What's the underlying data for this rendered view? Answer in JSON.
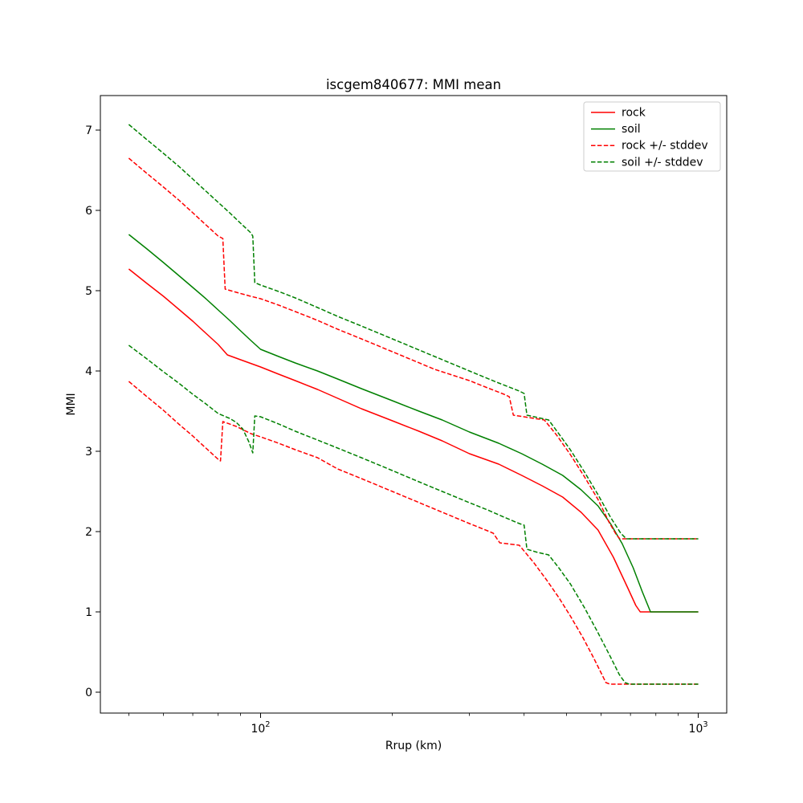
{
  "figure": {
    "background": "#ffffff"
  },
  "chart_data": {
    "type": "line",
    "title": "iscgem840677: MMI mean",
    "xlabel": "Rrup (km)",
    "ylabel": "MMI",
    "x_scale": "log",
    "x_range_log10": [
      1.634,
      3.065
    ],
    "y_range": [
      -0.26,
      7.43
    ],
    "x_major_ticks": [
      {
        "value": 100,
        "base": "10",
        "exponent": "2"
      },
      {
        "value": 1000,
        "base": "10",
        "exponent": "3"
      }
    ],
    "x_minor_ticks": [
      50,
      60,
      70,
      80,
      90,
      200,
      300,
      400,
      500,
      600,
      700,
      800,
      900
    ],
    "y_ticks": [
      0,
      1,
      2,
      3,
      4,
      5,
      6,
      7
    ],
    "grid": false,
    "colors": {
      "rock": "#ff0000",
      "soil": "#008000"
    },
    "legend": {
      "position": "upper right",
      "entries": [
        {
          "label": "rock",
          "color": "#ff0000",
          "dashed": false
        },
        {
          "label": "soil",
          "color": "#008000",
          "dashed": false
        },
        {
          "label": "rock +/- stddev",
          "color": "#ff0000",
          "dashed": true
        },
        {
          "label": "soil +/- stddev",
          "color": "#008000",
          "dashed": true
        }
      ]
    },
    "series": [
      {
        "id": "rock-mean",
        "legend": "rock",
        "color": "#ff0000",
        "dashed": false,
        "points": [
          [
            50,
            5.27
          ],
          [
            55,
            5.09
          ],
          [
            60,
            4.93
          ],
          [
            65,
            4.77
          ],
          [
            70,
            4.62
          ],
          [
            75,
            4.47
          ],
          [
            80,
            4.33
          ],
          [
            84,
            4.2
          ],
          [
            90,
            4.14
          ],
          [
            100,
            4.05
          ],
          [
            110,
            3.96
          ],
          [
            120,
            3.88
          ],
          [
            135,
            3.77
          ],
          [
            150,
            3.66
          ],
          [
            170,
            3.53
          ],
          [
            200,
            3.38
          ],
          [
            230,
            3.25
          ],
          [
            260,
            3.13
          ],
          [
            300,
            2.97
          ],
          [
            350,
            2.84
          ],
          [
            395,
            2.7
          ],
          [
            440,
            2.57
          ],
          [
            490,
            2.43
          ],
          [
            540,
            2.24
          ],
          [
            590,
            2.02
          ],
          [
            640,
            1.68
          ],
          [
            690,
            1.3
          ],
          [
            720,
            1.08
          ],
          [
            737,
            1.0
          ],
          [
            1000,
            1.0
          ]
        ]
      },
      {
        "id": "soil-mean",
        "legend": "soil",
        "color": "#008000",
        "dashed": false,
        "points": [
          [
            50,
            5.7
          ],
          [
            55,
            5.52
          ],
          [
            60,
            5.35
          ],
          [
            65,
            5.19
          ],
          [
            70,
            5.04
          ],
          [
            75,
            4.9
          ],
          [
            80,
            4.76
          ],
          [
            85,
            4.63
          ],
          [
            90,
            4.5
          ],
          [
            95,
            4.38
          ],
          [
            100,
            4.27
          ],
          [
            110,
            4.18
          ],
          [
            120,
            4.1
          ],
          [
            135,
            4.0
          ],
          [
            150,
            3.9
          ],
          [
            170,
            3.78
          ],
          [
            200,
            3.63
          ],
          [
            230,
            3.5
          ],
          [
            260,
            3.39
          ],
          [
            300,
            3.24
          ],
          [
            350,
            3.1
          ],
          [
            395,
            2.97
          ],
          [
            440,
            2.84
          ],
          [
            490,
            2.7
          ],
          [
            540,
            2.52
          ],
          [
            590,
            2.32
          ],
          [
            630,
            2.1
          ],
          [
            670,
            1.85
          ],
          [
            710,
            1.55
          ],
          [
            745,
            1.25
          ],
          [
            778,
            1.0
          ],
          [
            1000,
            1.0
          ]
        ]
      },
      {
        "id": "rock-plus-stddev",
        "legend": "rock +/- stddev",
        "color": "#ff0000",
        "dashed": true,
        "points": [
          [
            50,
            6.65
          ],
          [
            55,
            6.46
          ],
          [
            60,
            6.29
          ],
          [
            65,
            6.13
          ],
          [
            70,
            5.97
          ],
          [
            75,
            5.82
          ],
          [
            80,
            5.68
          ],
          [
            82,
            5.65
          ],
          [
            83,
            5.02
          ],
          [
            88,
            4.98
          ],
          [
            95,
            4.93
          ],
          [
            100,
            4.9
          ],
          [
            110,
            4.82
          ],
          [
            120,
            4.74
          ],
          [
            135,
            4.63
          ],
          [
            150,
            4.52
          ],
          [
            170,
            4.4
          ],
          [
            200,
            4.24
          ],
          [
            250,
            4.02
          ],
          [
            300,
            3.88
          ],
          [
            330,
            3.79
          ],
          [
            360,
            3.71
          ],
          [
            370,
            3.68
          ],
          [
            378,
            3.45
          ],
          [
            410,
            3.42
          ],
          [
            445,
            3.39
          ],
          [
            475,
            3.2
          ],
          [
            510,
            2.96
          ],
          [
            550,
            2.68
          ],
          [
            590,
            2.4
          ],
          [
            625,
            2.12
          ],
          [
            650,
            1.96
          ],
          [
            662,
            1.91
          ],
          [
            1000,
            1.91
          ]
        ]
      },
      {
        "id": "rock-minus-stddev",
        "legend": "rock +/- stddev",
        "color": "#ff0000",
        "dashed": true,
        "points": [
          [
            50,
            3.87
          ],
          [
            55,
            3.68
          ],
          [
            60,
            3.51
          ],
          [
            65,
            3.34
          ],
          [
            70,
            3.19
          ],
          [
            75,
            3.04
          ],
          [
            80,
            2.9
          ],
          [
            81,
            2.88
          ],
          [
            82,
            3.37
          ],
          [
            88,
            3.31
          ],
          [
            95,
            3.22
          ],
          [
            100,
            3.18
          ],
          [
            110,
            3.1
          ],
          [
            120,
            3.02
          ],
          [
            135,
            2.92
          ],
          [
            150,
            2.78
          ],
          [
            170,
            2.66
          ],
          [
            200,
            2.5
          ],
          [
            250,
            2.28
          ],
          [
            300,
            2.1
          ],
          [
            330,
            2.01
          ],
          [
            340,
            1.98
          ],
          [
            352,
            1.86
          ],
          [
            390,
            1.83
          ],
          [
            420,
            1.62
          ],
          [
            450,
            1.4
          ],
          [
            480,
            1.18
          ],
          [
            510,
            0.95
          ],
          [
            545,
            0.68
          ],
          [
            575,
            0.44
          ],
          [
            600,
            0.24
          ],
          [
            615,
            0.12
          ],
          [
            628,
            0.1
          ],
          [
            1000,
            0.1
          ]
        ]
      },
      {
        "id": "soil-plus-stddev",
        "legend": "soil +/- stddev",
        "color": "#008000",
        "dashed": true,
        "points": [
          [
            50,
            7.07
          ],
          [
            55,
            6.88
          ],
          [
            60,
            6.71
          ],
          [
            65,
            6.55
          ],
          [
            70,
            6.39
          ],
          [
            75,
            6.24
          ],
          [
            80,
            6.1
          ],
          [
            85,
            5.97
          ],
          [
            90,
            5.84
          ],
          [
            95,
            5.72
          ],
          [
            96,
            5.68
          ],
          [
            97,
            5.1
          ],
          [
            100,
            5.07
          ],
          [
            110,
            4.99
          ],
          [
            120,
            4.91
          ],
          [
            135,
            4.79
          ],
          [
            150,
            4.68
          ],
          [
            170,
            4.56
          ],
          [
            200,
            4.4
          ],
          [
            250,
            4.18
          ],
          [
            300,
            4.0
          ],
          [
            350,
            3.85
          ],
          [
            390,
            3.75
          ],
          [
            400,
            3.72
          ],
          [
            406,
            3.45
          ],
          [
            430,
            3.42
          ],
          [
            455,
            3.39
          ],
          [
            480,
            3.22
          ],
          [
            510,
            3.02
          ],
          [
            550,
            2.74
          ],
          [
            590,
            2.46
          ],
          [
            630,
            2.18
          ],
          [
            665,
            1.98
          ],
          [
            685,
            1.91
          ],
          [
            1000,
            1.91
          ]
        ]
      },
      {
        "id": "soil-minus-stddev",
        "legend": "soil +/- stddev",
        "color": "#008000",
        "dashed": true,
        "points": [
          [
            50,
            4.32
          ],
          [
            55,
            4.15
          ],
          [
            60,
            3.99
          ],
          [
            65,
            3.85
          ],
          [
            70,
            3.71
          ],
          [
            75,
            3.59
          ],
          [
            80,
            3.47
          ],
          [
            85,
            3.41
          ],
          [
            88,
            3.36
          ],
          [
            91,
            3.28
          ],
          [
            94,
            3.12
          ],
          [
            96,
            2.98
          ],
          [
            97,
            3.44
          ],
          [
            100,
            3.43
          ],
          [
            110,
            3.34
          ],
          [
            120,
            3.25
          ],
          [
            135,
            3.14
          ],
          [
            150,
            3.04
          ],
          [
            170,
            2.92
          ],
          [
            200,
            2.76
          ],
          [
            230,
            2.62
          ],
          [
            260,
            2.5
          ],
          [
            300,
            2.36
          ],
          [
            330,
            2.27
          ],
          [
            360,
            2.18
          ],
          [
            390,
            2.1
          ],
          [
            400,
            2.08
          ],
          [
            406,
            1.78
          ],
          [
            430,
            1.74
          ],
          [
            455,
            1.71
          ],
          [
            480,
            1.55
          ],
          [
            510,
            1.35
          ],
          [
            550,
            1.05
          ],
          [
            590,
            0.74
          ],
          [
            630,
            0.44
          ],
          [
            660,
            0.22
          ],
          [
            680,
            0.12
          ],
          [
            695,
            0.1
          ],
          [
            1000,
            0.1
          ]
        ]
      }
    ]
  }
}
